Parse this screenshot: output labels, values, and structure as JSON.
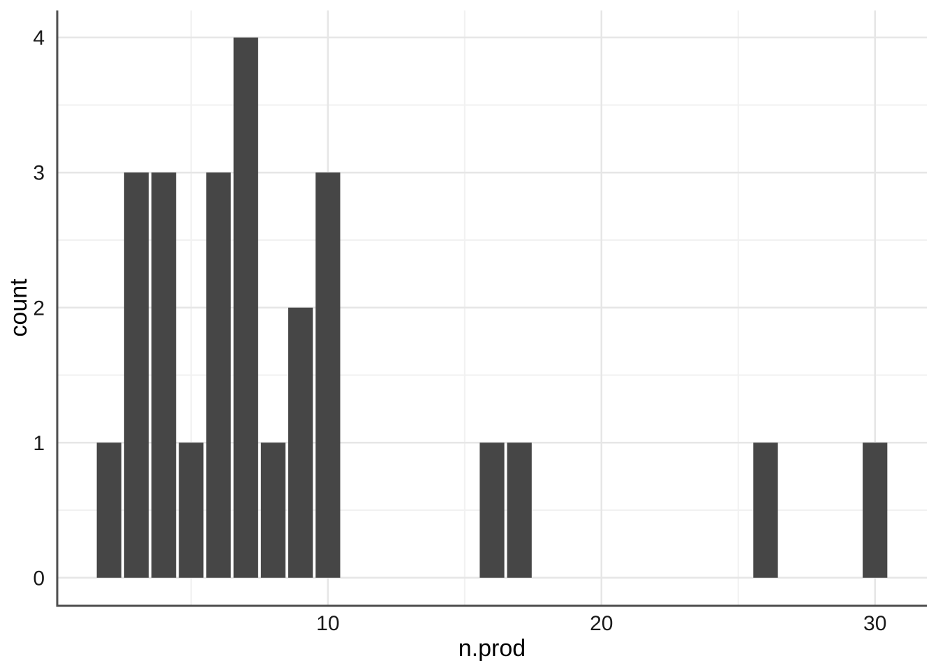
{
  "chart_data": {
    "type": "bar",
    "subtype": "histogram",
    "title": "",
    "xlabel": "n.prod",
    "ylabel": "count",
    "x": [
      2,
      3,
      4,
      5,
      6,
      7,
      8,
      9,
      10,
      16,
      17,
      26,
      30
    ],
    "values": [
      1,
      3,
      3,
      1,
      3,
      4,
      1,
      2,
      3,
      1,
      1,
      1,
      1
    ],
    "bar_width_units": 0.9,
    "xlim": [
      0.105,
      31.895
    ],
    "ylim": [
      -0.2,
      4.2
    ],
    "x_major_ticks": [
      10,
      20,
      30
    ],
    "x_minor_ticks": [
      5,
      15,
      25
    ],
    "y_major_ticks": [
      0,
      1,
      2,
      3,
      4
    ],
    "y_minor_ticks": [
      0.5,
      1.5,
      2.5,
      3.5
    ],
    "grid": "major+minor",
    "legend_position": "none",
    "axis_ticks_visible": false,
    "colors": {
      "bar_fill": "#464646",
      "grid_major": "#e6e6e6",
      "grid_minor": "#f1f1f1",
      "axis_line": "#4d4d4d",
      "tick_label": "#1a1a1a",
      "axis_title": "#000000",
      "panel_background": "#ffffff"
    }
  }
}
